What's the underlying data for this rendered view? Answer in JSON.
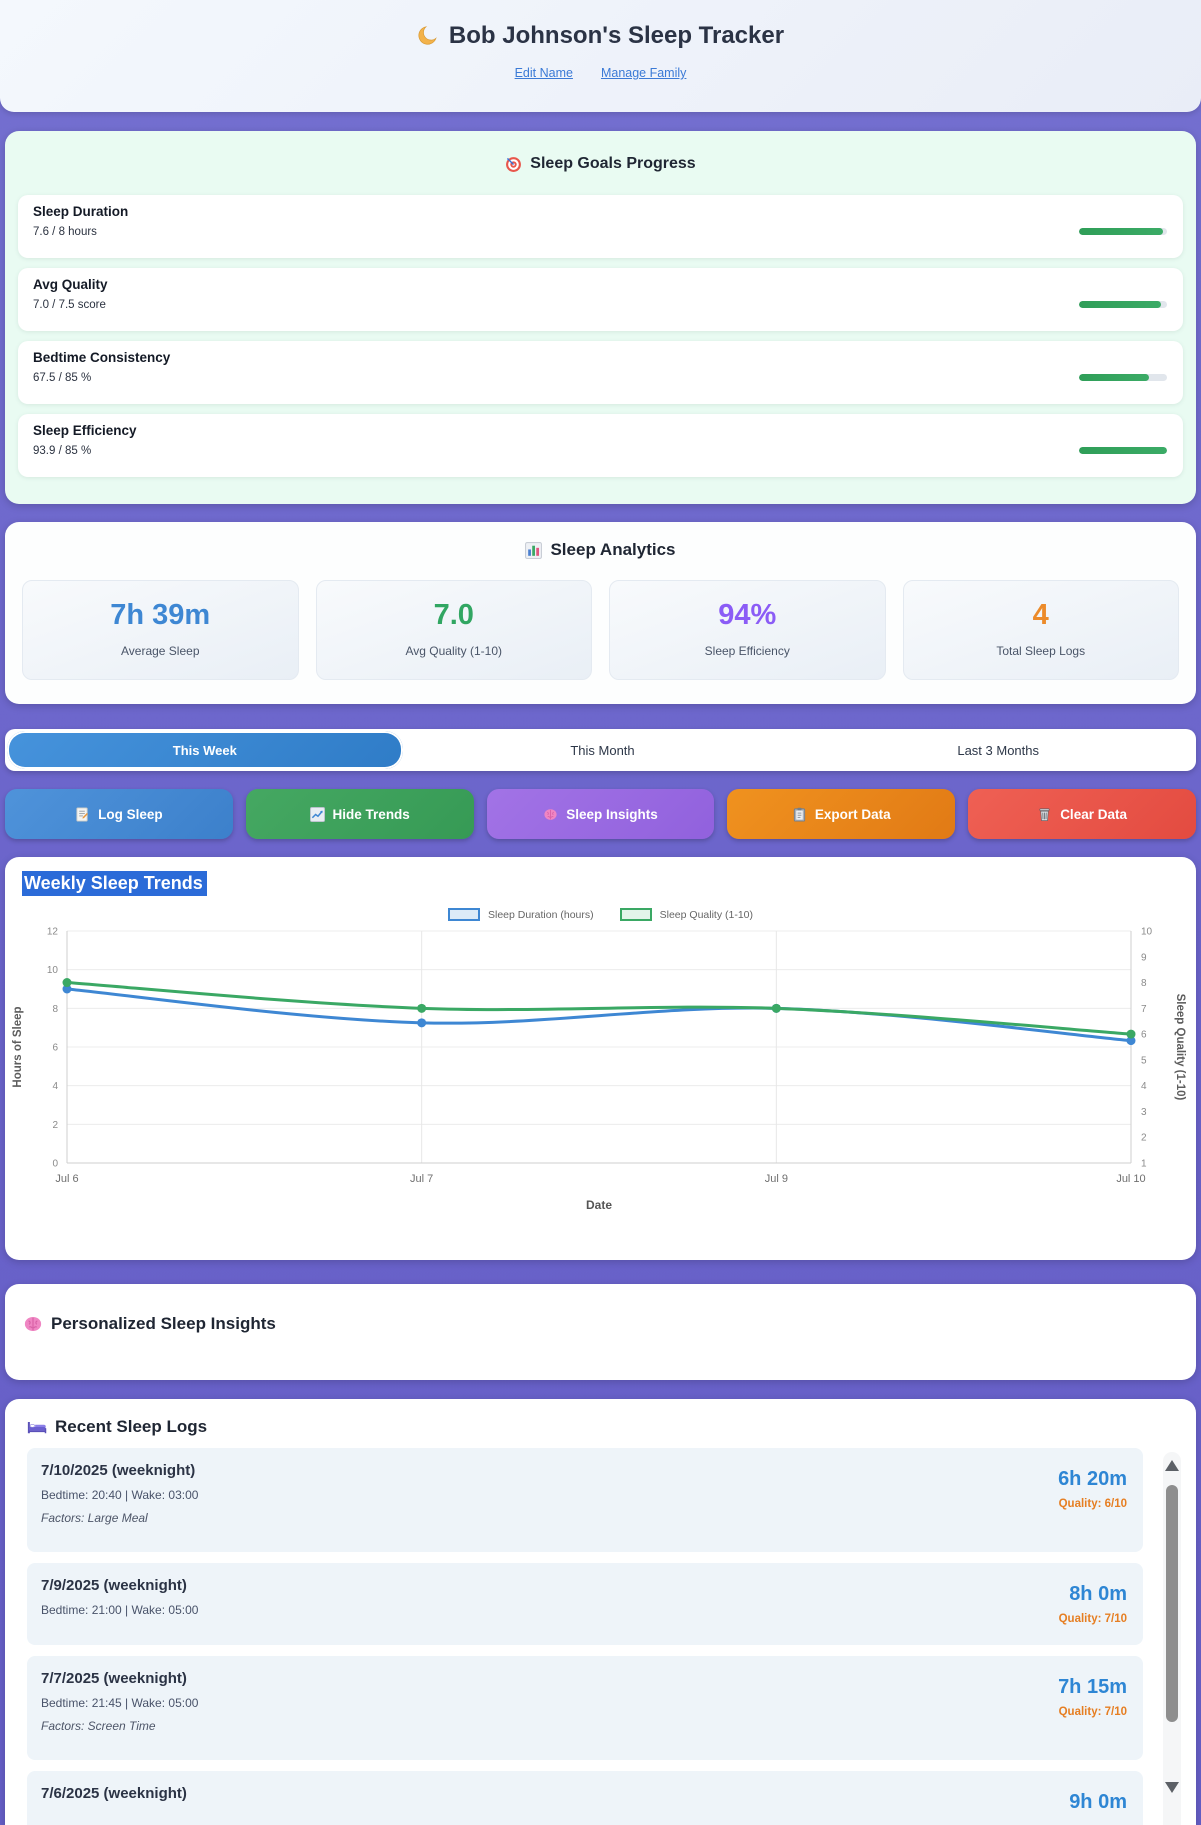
{
  "header": {
    "title": "Bob Johnson's Sleep Tracker",
    "links": [
      {
        "label": "Edit Name"
      },
      {
        "label": "Manage Family"
      }
    ]
  },
  "goals": {
    "title": "Sleep Goals Progress",
    "bar_color": "#34a561",
    "items": [
      {
        "label": "Sleep Duration",
        "value_text": "7.6 / 8 hours",
        "percent": 95
      },
      {
        "label": "Avg Quality",
        "value_text": "7.0 / 7.5 score",
        "percent": 93
      },
      {
        "label": "Bedtime Consistency",
        "value_text": "67.5 / 85 %",
        "percent": 79
      },
      {
        "label": "Sleep Efficiency",
        "value_text": "93.9 / 85 %",
        "percent": 100
      }
    ]
  },
  "analytics": {
    "title": "Sleep Analytics",
    "stats": [
      {
        "value": "7h 39m",
        "label": "Average Sleep",
        "color": "#3e87d3"
      },
      {
        "value": "7.0",
        "label": "Avg Quality (1-10)",
        "color": "#31a662"
      },
      {
        "value": "94%",
        "label": "Sleep Efficiency",
        "color": "#8b5cf6"
      },
      {
        "value": "4",
        "label": "Total Sleep Logs",
        "color": "#ec8b2a"
      }
    ]
  },
  "tabs": [
    {
      "label": "This Week",
      "active": true
    },
    {
      "label": "This Month",
      "active": false
    },
    {
      "label": "Last 3 Months",
      "active": false
    }
  ],
  "actions": [
    {
      "label": "Log Sleep",
      "icon": "memo-icon",
      "color1": "#4f93da",
      "color2": "#3c80cb"
    },
    {
      "label": "Hide Trends",
      "icon": "trend-icon",
      "color1": "#45a862",
      "color2": "#369a55"
    },
    {
      "label": "Sleep Insights",
      "icon": "brain-icon",
      "color1": "#a273e6",
      "color2": "#9161dd"
    },
    {
      "label": "Export Data",
      "icon": "clipboard-icon",
      "color1": "#f0921f",
      "color2": "#e17a15"
    },
    {
      "label": "Clear Data",
      "icon": "trash-icon",
      "color1": "#ef6054",
      "color2": "#e34b40"
    }
  ],
  "chart_data": {
    "type": "line",
    "title": "Weekly Sleep Trends",
    "x": [
      "Jul 6",
      "Jul 7",
      "Jul 9",
      "Jul 10"
    ],
    "series": [
      {
        "name": "Sleep Duration (hours)",
        "axis": "left",
        "color": "#3e87d3",
        "fill": "#dcebf8",
        "values": [
          9.0,
          7.25,
          8.0,
          6.33
        ]
      },
      {
        "name": "Sleep Quality (1-10)",
        "axis": "right",
        "color": "#3aa864",
        "fill": "#e3f4ea",
        "values": [
          8,
          7,
          7,
          6
        ]
      }
    ],
    "left_axis": {
      "label": "Hours of Sleep",
      "min": 0,
      "max": 12,
      "ticks": [
        0,
        2,
        4,
        6,
        8,
        10,
        12
      ]
    },
    "right_axis": {
      "label": "Sleep Quality (1-10)",
      "min": 1,
      "max": 10,
      "ticks": [
        1,
        2,
        3,
        4,
        5,
        6,
        7,
        8,
        9,
        10
      ]
    },
    "xlabel": "Date",
    "grid": true,
    "legend_position": "top"
  },
  "insights": {
    "title": "Personalized Sleep Insights"
  },
  "logs": {
    "title": "Recent Sleep Logs",
    "entries": [
      {
        "date": "7/10/2025 (weeknight)",
        "times": "Bedtime: 20:40 | Wake: 03:00",
        "factors": "Factors: Large Meal",
        "duration": "6h 20m",
        "quality": "Quality: 6/10"
      },
      {
        "date": "7/9/2025 (weeknight)",
        "times": "Bedtime: 21:00 | Wake: 05:00",
        "factors": "",
        "duration": "8h 0m",
        "quality": "Quality: 7/10"
      },
      {
        "date": "7/7/2025 (weeknight)",
        "times": "Bedtime: 21:45 | Wake: 05:00",
        "factors": "Factors: Screen Time",
        "duration": "7h 15m",
        "quality": "Quality: 7/10"
      },
      {
        "date": "7/6/2025 (weeknight)",
        "times": "",
        "factors": "",
        "duration": "9h 0m",
        "quality": ""
      }
    ]
  }
}
